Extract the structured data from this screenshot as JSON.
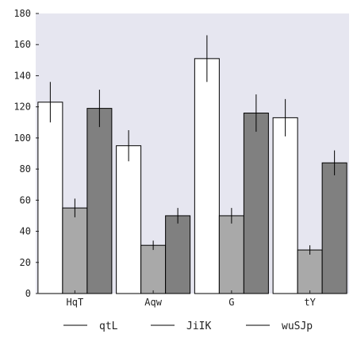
{
  "chart_data": {
    "type": "bar",
    "categories": [
      "HqT",
      "Aqw",
      "G",
      "tY"
    ],
    "series": [
      {
        "name": "qtL",
        "values": [
          123,
          95,
          151,
          113
        ],
        "errors": [
          13,
          10,
          15,
          12
        ],
        "color": "#ffffff"
      },
      {
        "name": "JiIK",
        "values": [
          55,
          31,
          50,
          28
        ],
        "errors": [
          6,
          3,
          5,
          3
        ],
        "color": "#a9a9a9"
      },
      {
        "name": "wuSJp",
        "values": [
          119,
          50,
          116,
          84
        ],
        "errors": [
          12,
          5,
          12,
          8
        ],
        "color": "#808080"
      }
    ],
    "yticks": [
      0,
      20,
      40,
      60,
      80,
      100,
      120,
      140,
      160,
      180
    ],
    "ylim": [
      0,
      180
    ],
    "title": "",
    "xlabel": "",
    "ylabel": "",
    "grid": false,
    "legend_position": "bottom",
    "plot_background": "#e6e6f0",
    "bar_edge_color": "#000000",
    "error_bar_color": "#000000"
  }
}
